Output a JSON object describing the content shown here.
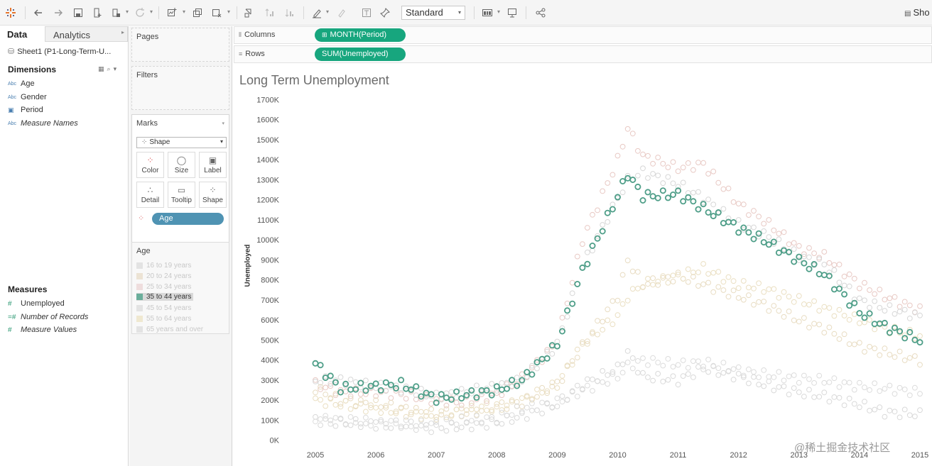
{
  "toolbar": {
    "fit_select": "Standard",
    "show_me": "Sho"
  },
  "data_pane": {
    "tab_data": "Data",
    "tab_analytics": "Analytics",
    "datasource": "Sheet1 (P1-Long-Term-U...",
    "dimensions_header": "Dimensions",
    "dimensions": [
      {
        "icon": "Abc",
        "label": "Age",
        "italic": false
      },
      {
        "icon": "Abc",
        "label": "Gender",
        "italic": false
      },
      {
        "icon": "calendar",
        "label": "Period",
        "italic": false
      },
      {
        "icon": "Abc",
        "label": "Measure Names",
        "italic": true
      }
    ],
    "measures_header": "Measures",
    "measures": [
      {
        "icon": "#",
        "label": "Unemployed",
        "italic": false
      },
      {
        "icon": "=#",
        "label": "Number of Records",
        "italic": true
      },
      {
        "icon": "#",
        "label": "Measure Values",
        "italic": true
      }
    ]
  },
  "cards": {
    "pages_title": "Pages",
    "filters_title": "Filters",
    "marks_title": "Marks",
    "mark_type": "Shape",
    "mark_buttons": [
      "Color",
      "Size",
      "Label",
      "Detail",
      "Tooltip",
      "Shape"
    ],
    "age_pill": "Age",
    "legend_title": "Age",
    "legend_items": [
      {
        "label": "16 to 19 years",
        "color": "#e3e3e3",
        "active": false
      },
      {
        "label": "20 to 24 years",
        "color": "#ece3d4",
        "active": false
      },
      {
        "label": "25 to 34 years",
        "color": "#eedddd",
        "active": false
      },
      {
        "label": "35 to 44 years",
        "color": "#6aae9b",
        "active": true
      },
      {
        "label": "45 to 54 years",
        "color": "#e3e3e3",
        "active": false
      },
      {
        "label": "55 to 64 years",
        "color": "#efe8d0",
        "active": false
      },
      {
        "label": "65 years and over",
        "color": "#e3e3e3",
        "active": false
      }
    ]
  },
  "shelves": {
    "columns_label": "Columns",
    "columns_pill": "MONTH(Period)",
    "rows_label": "Rows",
    "rows_pill": "SUM(Unemployed)"
  },
  "watermark": "@稀土掘金技术社区",
  "chart_data": {
    "type": "scatter",
    "title": "Long Term Unemployment",
    "ylabel": "Unemployed",
    "xlabel": "",
    "x_ticks": [
      "2005",
      "2006",
      "2007",
      "2008",
      "2009",
      "2010",
      "2011",
      "2012",
      "2013",
      "2014",
      "2015"
    ],
    "y_ticks": [
      "0K",
      "100K",
      "200K",
      "300K",
      "400K",
      "500K",
      "600K",
      "700K",
      "800K",
      "900K",
      "1000K",
      "1100K",
      "1200K",
      "1300K",
      "1400K",
      "1500K",
      "1600K",
      "1700K"
    ],
    "xlim": [
      "2005-01",
      "2015-01"
    ],
    "ylim": [
      0,
      1700000
    ],
    "highlight_color": "#4e9e88",
    "series": [
      {
        "name": "35 to 44 years",
        "highlighted": true,
        "color": "#4e9e88",
        "anchors": [
          [
            "2005-01",
            385000
          ],
          [
            "2005-06",
            260000
          ],
          [
            "2006-01",
            270000
          ],
          [
            "2006-06",
            280000
          ],
          [
            "2007-01",
            210000
          ],
          [
            "2007-06",
            225000
          ],
          [
            "2008-01",
            250000
          ],
          [
            "2008-06",
            300000
          ],
          [
            "2009-01",
            480000
          ],
          [
            "2009-06",
            850000
          ],
          [
            "2010-01",
            1220000
          ],
          [
            "2010-03",
            1330000
          ],
          [
            "2010-06",
            1220000
          ],
          [
            "2011-01",
            1230000
          ],
          [
            "2011-06",
            1160000
          ],
          [
            "2012-01",
            1060000
          ],
          [
            "2012-06",
            1000000
          ],
          [
            "2013-01",
            900000
          ],
          [
            "2013-06",
            830000
          ],
          [
            "2014-01",
            640000
          ],
          [
            "2014-06",
            570000
          ],
          [
            "2015-01",
            500000
          ]
        ]
      },
      {
        "name": "25 to 34 years",
        "highlighted": false,
        "color": "#e8c9c4",
        "anchors": [
          [
            "2005-01",
            280000
          ],
          [
            "2005-06",
            240000
          ],
          [
            "2006-01",
            240000
          ],
          [
            "2006-06",
            230000
          ],
          [
            "2007-01",
            200000
          ],
          [
            "2007-06",
            190000
          ],
          [
            "2008-01",
            230000
          ],
          [
            "2008-06",
            310000
          ],
          [
            "2009-01",
            490000
          ],
          [
            "2009-06",
            1000000
          ],
          [
            "2010-01",
            1400000
          ],
          [
            "2010-03",
            1560000
          ],
          [
            "2010-06",
            1420000
          ],
          [
            "2011-01",
            1360000
          ],
          [
            "2011-06",
            1380000
          ],
          [
            "2012-01",
            1180000
          ],
          [
            "2012-06",
            1100000
          ],
          [
            "2013-01",
            960000
          ],
          [
            "2013-06",
            920000
          ],
          [
            "2014-01",
            780000
          ],
          [
            "2014-06",
            720000
          ],
          [
            "2015-01",
            650000
          ]
        ]
      },
      {
        "name": "45 to 54 years",
        "highlighted": false,
        "color": "#d7d7d7",
        "anchors": [
          [
            "2005-01",
            300000
          ],
          [
            "2005-06",
            300000
          ],
          [
            "2006-01",
            270000
          ],
          [
            "2006-06",
            260000
          ],
          [
            "2007-01",
            220000
          ],
          [
            "2007-06",
            240000
          ],
          [
            "2008-01",
            270000
          ],
          [
            "2008-06",
            300000
          ],
          [
            "2009-01",
            480000
          ],
          [
            "2009-06",
            870000
          ],
          [
            "2010-01",
            1210000
          ],
          [
            "2010-03",
            1300000
          ],
          [
            "2010-06",
            1340000
          ],
          [
            "2011-01",
            1280000
          ],
          [
            "2011-06",
            1210000
          ],
          [
            "2012-01",
            1080000
          ],
          [
            "2012-06",
            1030000
          ],
          [
            "2013-01",
            920000
          ],
          [
            "2013-06",
            880000
          ],
          [
            "2014-01",
            700000
          ],
          [
            "2014-06",
            660000
          ],
          [
            "2015-01",
            620000
          ]
        ]
      },
      {
        "name": "20 to 24 years",
        "highlighted": false,
        "color": "#e8dcc2",
        "anchors": [
          [
            "2005-01",
            260000
          ],
          [
            "2005-06",
            200000
          ],
          [
            "2006-01",
            180000
          ],
          [
            "2006-06",
            160000
          ],
          [
            "2007-01",
            130000
          ],
          [
            "2007-06",
            150000
          ],
          [
            "2008-01",
            170000
          ],
          [
            "2008-06",
            190000
          ],
          [
            "2009-01",
            280000
          ],
          [
            "2009-06",
            470000
          ],
          [
            "2010-01",
            720000
          ],
          [
            "2010-03",
            900000
          ],
          [
            "2010-06",
            780000
          ],
          [
            "2011-01",
            820000
          ],
          [
            "2011-06",
            780000
          ],
          [
            "2012-01",
            720000
          ],
          [
            "2012-06",
            680000
          ],
          [
            "2013-01",
            600000
          ],
          [
            "2013-06",
            560000
          ],
          [
            "2014-01",
            470000
          ],
          [
            "2014-06",
            440000
          ],
          [
            "2015-01",
            400000
          ]
        ]
      },
      {
        "name": "55 to 64 years",
        "highlighted": false,
        "color": "#eadfc2",
        "anchors": [
          [
            "2005-01",
            200000
          ],
          [
            "2005-06",
            180000
          ],
          [
            "2006-01",
            160000
          ],
          [
            "2006-06",
            140000
          ],
          [
            "2007-01",
            120000
          ],
          [
            "2007-06",
            140000
          ],
          [
            "2008-01",
            160000
          ],
          [
            "2008-06",
            200000
          ],
          [
            "2009-01",
            280000
          ],
          [
            "2009-06",
            480000
          ],
          [
            "2010-01",
            620000
          ],
          [
            "2010-03",
            720000
          ],
          [
            "2010-06",
            780000
          ],
          [
            "2011-01",
            820000
          ],
          [
            "2011-06",
            860000
          ],
          [
            "2012-01",
            780000
          ],
          [
            "2012-06",
            760000
          ],
          [
            "2013-01",
            700000
          ],
          [
            "2013-06",
            660000
          ],
          [
            "2014-01",
            600000
          ],
          [
            "2014-06",
            560000
          ],
          [
            "2015-01",
            520000
          ]
        ]
      },
      {
        "name": "16 to 19 years",
        "highlighted": false,
        "color": "#d9d9d9",
        "anchors": [
          [
            "2005-01",
            100000
          ],
          [
            "2005-06",
            90000
          ],
          [
            "2006-01",
            80000
          ],
          [
            "2006-06",
            80000
          ],
          [
            "2007-01",
            60000
          ],
          [
            "2007-06",
            70000
          ],
          [
            "2008-01",
            90000
          ],
          [
            "2008-06",
            120000
          ],
          [
            "2009-01",
            180000
          ],
          [
            "2009-06",
            280000
          ],
          [
            "2010-01",
            360000
          ],
          [
            "2010-03",
            440000
          ],
          [
            "2010-06",
            320000
          ],
          [
            "2011-01",
            300000
          ],
          [
            "2011-06",
            360000
          ],
          [
            "2012-01",
            320000
          ],
          [
            "2012-06",
            280000
          ],
          [
            "2013-01",
            240000
          ],
          [
            "2013-06",
            220000
          ],
          [
            "2014-01",
            180000
          ],
          [
            "2014-06",
            140000
          ],
          [
            "2015-01",
            130000
          ]
        ]
      },
      {
        "name": "65 years and over",
        "highlighted": false,
        "color": "#dcdcdc",
        "anchors": [
          [
            "2005-01",
            110000
          ],
          [
            "2005-06",
            100000
          ],
          [
            "2006-01",
            90000
          ],
          [
            "2006-06",
            80000
          ],
          [
            "2007-01",
            80000
          ],
          [
            "2007-06",
            100000
          ],
          [
            "2008-01",
            110000
          ],
          [
            "2008-06",
            160000
          ],
          [
            "2009-01",
            190000
          ],
          [
            "2009-06",
            250000
          ],
          [
            "2010-01",
            320000
          ],
          [
            "2010-03",
            370000
          ],
          [
            "2010-06",
            400000
          ],
          [
            "2011-01",
            380000
          ],
          [
            "2011-06",
            390000
          ],
          [
            "2012-01",
            350000
          ],
          [
            "2012-06",
            330000
          ],
          [
            "2013-01",
            310000
          ],
          [
            "2013-06",
            300000
          ],
          [
            "2014-01",
            270000
          ],
          [
            "2014-06",
            260000
          ],
          [
            "2015-01",
            240000
          ]
        ]
      }
    ]
  }
}
